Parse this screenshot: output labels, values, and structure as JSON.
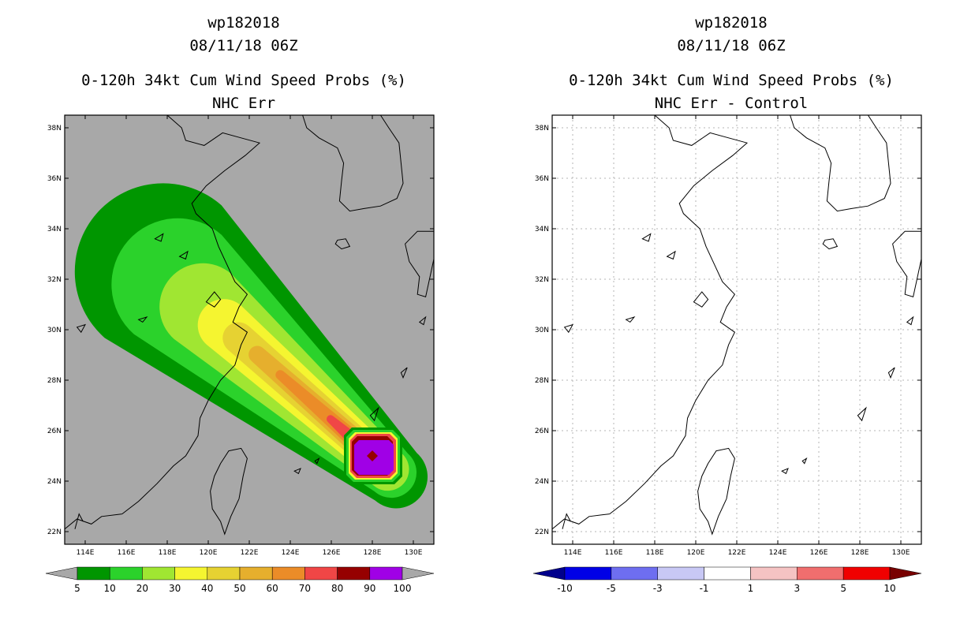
{
  "panels": [
    {
      "storm_id": "wp182018",
      "datetime": "08/11/18 06Z",
      "title": "0-120h 34kt Cum Wind Speed Probs (%)",
      "subtitle": "NHC Err"
    },
    {
      "storm_id": "wp182018",
      "datetime": "08/11/18 06Z",
      "title": "0-120h 34kt Cum Wind Speed Probs (%)",
      "subtitle": "NHC Err - Control"
    }
  ],
  "chart_data": [
    {
      "type": "heatmap",
      "title": "0-120h 34kt Cum Wind Speed Probs (%)",
      "subtitle": "NHC Err",
      "xlim": [
        113,
        131
      ],
      "ylim": [
        21.5,
        38.5
      ],
      "x_ticks": [
        114,
        116,
        118,
        120,
        122,
        124,
        126,
        128,
        130
      ],
      "x_tick_labels": [
        "114E",
        "116E",
        "118E",
        "120E",
        "122E",
        "124E",
        "126E",
        "128E",
        "130E"
      ],
      "y_ticks": [
        22,
        24,
        26,
        28,
        30,
        32,
        34,
        36,
        38
      ],
      "y_tick_labels": [
        "22N",
        "24N",
        "26N",
        "28N",
        "30N",
        "32N",
        "34N",
        "36N",
        "38N"
      ],
      "background": "#a8a8a8",
      "grid": false,
      "storm_center": {
        "lon": 128.0,
        "lat": 25.0
      },
      "track_end": {
        "lon": 117.8,
        "lat": 32.3
      },
      "contour_levels": [
        5,
        10,
        20,
        30,
        40,
        50,
        60,
        70,
        80,
        90,
        100
      ],
      "colorbar": {
        "colors": [
          "#009600",
          "#2bd22b",
          "#a0e632",
          "#f5f530",
          "#e6d232",
          "#e6af2d",
          "#eb8c28",
          "#f04646",
          "#960000",
          "#a000e6"
        ],
        "labels": [
          "5",
          "10",
          "20",
          "30",
          "40",
          "50",
          "60",
          "70",
          "80",
          "90",
          "100"
        ],
        "under_color": "#a8a8a8",
        "over_color": "#a8a8a8"
      }
    },
    {
      "type": "heatmap",
      "title": "0-120h 34kt Cum Wind Speed Probs (%)",
      "subtitle": "NHC Err - Control",
      "xlim": [
        113,
        131
      ],
      "ylim": [
        21.5,
        38.5
      ],
      "x_ticks": [
        114,
        116,
        118,
        120,
        122,
        124,
        126,
        128,
        130
      ],
      "x_tick_labels": [
        "114E",
        "116E",
        "118E",
        "120E",
        "122E",
        "124E",
        "126E",
        "128E",
        "130E"
      ],
      "y_ticks": [
        22,
        24,
        26,
        28,
        30,
        32,
        34,
        36,
        38
      ],
      "y_tick_labels": [
        "22N",
        "24N",
        "26N",
        "28N",
        "30N",
        "32N",
        "34N",
        "36N",
        "38N"
      ],
      "background": "#ffffff",
      "grid": true,
      "difference_values": "none",
      "colorbar": {
        "colors": [
          "#0000e6",
          "#6e6ef0",
          "#c8c8f5",
          "#ffffff",
          "#f5c3c3",
          "#f06e6e",
          "#f00000"
        ],
        "labels": [
          "-10",
          "-5",
          "-3",
          "-1",
          "1",
          "3",
          "5",
          "10"
        ],
        "under_color": "#00008c",
        "over_color": "#780000"
      }
    }
  ]
}
